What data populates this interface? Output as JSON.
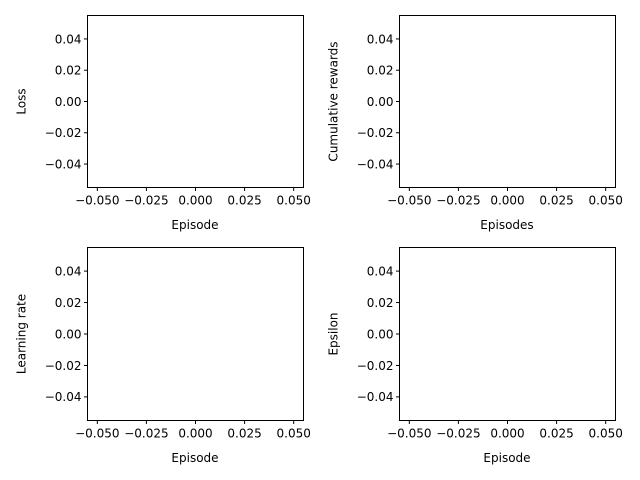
{
  "chart_data": [
    {
      "type": "line",
      "title": "",
      "xlabel": "Episode",
      "ylabel": "Loss",
      "xlim": [
        -0.055,
        0.055
      ],
      "ylim": [
        -0.055,
        0.055
      ],
      "xticks": [
        -0.05,
        -0.025,
        0.0,
        0.025,
        0.05
      ],
      "xtick_labels": [
        "−0.050",
        "−0.025",
        "0.000",
        "0.025",
        "0.050"
      ],
      "yticks": [
        0.04,
        0.02,
        0.0,
        -0.02,
        -0.04
      ],
      "ytick_labels": [
        "0.04",
        "0.02",
        "0.00",
        "−0.02",
        "−0.04"
      ],
      "series": [],
      "grid": false
    },
    {
      "type": "line",
      "title": "",
      "xlabel": "Episodes",
      "ylabel": "Cumulative rewards",
      "xlim": [
        -0.055,
        0.055
      ],
      "ylim": [
        -0.055,
        0.055
      ],
      "xticks": [
        -0.05,
        -0.025,
        0.0,
        0.025,
        0.05
      ],
      "xtick_labels": [
        "−0.050",
        "−0.025",
        "0.000",
        "0.025",
        "0.050"
      ],
      "yticks": [
        0.04,
        0.02,
        0.0,
        -0.02,
        -0.04
      ],
      "ytick_labels": [
        "0.04",
        "0.02",
        "0.00",
        "−0.02",
        "−0.04"
      ],
      "series": [],
      "grid": false
    },
    {
      "type": "line",
      "title": "",
      "xlabel": "Episode",
      "ylabel": "Learning rate",
      "xlim": [
        -0.055,
        0.055
      ],
      "ylim": [
        -0.055,
        0.055
      ],
      "xticks": [
        -0.05,
        -0.025,
        0.0,
        0.025,
        0.05
      ],
      "xtick_labels": [
        "−0.050",
        "−0.025",
        "0.000",
        "0.025",
        "0.050"
      ],
      "yticks": [
        0.04,
        0.02,
        0.0,
        -0.02,
        -0.04
      ],
      "ytick_labels": [
        "0.04",
        "0.02",
        "0.00",
        "−0.02",
        "−0.04"
      ],
      "series": [],
      "grid": false
    },
    {
      "type": "line",
      "title": "",
      "xlabel": "Episode",
      "ylabel": "Epsilon",
      "xlim": [
        -0.055,
        0.055
      ],
      "ylim": [
        -0.055,
        0.055
      ],
      "xticks": [
        -0.05,
        -0.025,
        0.0,
        0.025,
        0.05
      ],
      "xtick_labels": [
        "−0.050",
        "−0.025",
        "0.000",
        "0.025",
        "0.050"
      ],
      "yticks": [
        0.04,
        0.02,
        0.0,
        -0.02,
        -0.04
      ],
      "ytick_labels": [
        "0.04",
        "0.02",
        "0.00",
        "−0.02",
        "−0.04"
      ],
      "series": [],
      "grid": false
    }
  ]
}
